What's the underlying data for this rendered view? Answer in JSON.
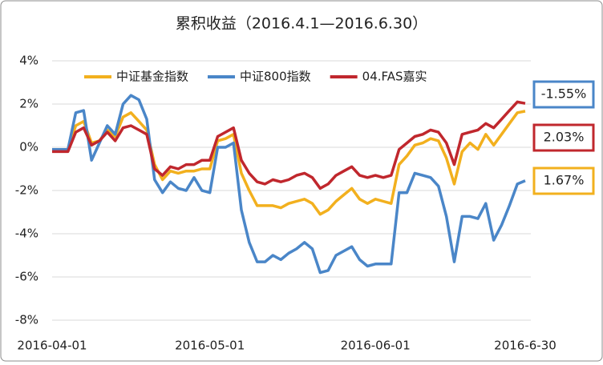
{
  "chart_data": {
    "type": "line",
    "title": "累积收益（2016.4.1—2016.6.30）",
    "categories": [
      "2016-04-01",
      null,
      null,
      null,
      null,
      null,
      null,
      null,
      null,
      null,
      null,
      null,
      null,
      null,
      null,
      null,
      null,
      null,
      null,
      null,
      "2016-05-01",
      null,
      null,
      null,
      null,
      null,
      null,
      null,
      null,
      null,
      null,
      null,
      null,
      null,
      null,
      null,
      null,
      null,
      null,
      null,
      null,
      "2016-06-01",
      null,
      null,
      null,
      null,
      null,
      null,
      null,
      null,
      null,
      null,
      null,
      null,
      null,
      null,
      null,
      null,
      null,
      null,
      "2016-6-30"
    ],
    "ylim": [
      -8,
      4
    ],
    "yticks": [
      {
        "value": -8,
        "label": "-8%"
      },
      {
        "value": -6,
        "label": "-6%"
      },
      {
        "value": -4,
        "label": "-4%"
      },
      {
        "value": -2,
        "label": "-2%"
      },
      {
        "value": 0,
        "label": "0%"
      },
      {
        "value": 2,
        "label": "2%"
      },
      {
        "value": 4,
        "label": "4%"
      }
    ],
    "grid": true,
    "legend": "top",
    "series": [
      {
        "name": "中证基金指数",
        "color": "#f2b01e",
        "values": [
          -0.1,
          -0.1,
          -0.1,
          1.0,
          1.2,
          0.2,
          0.3,
          0.8,
          0.5,
          1.4,
          1.6,
          1.2,
          0.8,
          -0.8,
          -1.5,
          -1.1,
          -1.2,
          -1.1,
          -1.1,
          -1.0,
          -1.0,
          0.3,
          0.4,
          0.6,
          -1.2,
          -2.0,
          -2.7,
          -2.7,
          -2.7,
          -2.8,
          -2.6,
          -2.5,
          -2.4,
          -2.6,
          -3.1,
          -2.9,
          -2.5,
          -2.2,
          -1.9,
          -2.4,
          -2.6,
          -2.4,
          -2.5,
          -2.6,
          -0.8,
          -0.4,
          0.1,
          0.2,
          0.4,
          0.3,
          -0.5,
          -1.7,
          -0.2,
          0.2,
          -0.1,
          0.6,
          0.1,
          0.6,
          1.1,
          1.6,
          1.67
        ],
        "value_labels": [
          null,
          null,
          null,
          null,
          null,
          null,
          null,
          null,
          null,
          null,
          null,
          null,
          null,
          null,
          null,
          null,
          null,
          null,
          null,
          null,
          null,
          null,
          null,
          null,
          null,
          null,
          null,
          null,
          null,
          null,
          null,
          null,
          null,
          null,
          null,
          null,
          null,
          null,
          null,
          null,
          null,
          null,
          null,
          null,
          null,
          null,
          null,
          null,
          null,
          null,
          null,
          null,
          null,
          null,
          null,
          null,
          null,
          null,
          null,
          null,
          "1.67%"
        ]
      },
      {
        "name": "中证800指数",
        "color": "#4a86c8",
        "values": [
          -0.1,
          -0.1,
          -0.1,
          1.6,
          1.7,
          -0.6,
          0.2,
          1.0,
          0.6,
          2.0,
          2.4,
          2.2,
          1.3,
          -1.5,
          -2.1,
          -1.6,
          -1.9,
          -2.0,
          -1.4,
          -2.0,
          -2.1,
          0.0,
          0.0,
          0.2,
          -2.9,
          -4.4,
          -5.3,
          -5.3,
          -5.0,
          -5.2,
          -4.9,
          -4.7,
          -4.4,
          -4.7,
          -5.8,
          -5.7,
          -5.0,
          -4.8,
          -4.6,
          -5.2,
          -5.5,
          -5.4,
          -5.4,
          -5.4,
          -2.1,
          -2.1,
          -1.2,
          -1.3,
          -1.4,
          -1.8,
          -3.2,
          -5.3,
          -3.2,
          -3.2,
          -3.3,
          -2.6,
          -4.3,
          -3.6,
          -2.7,
          -1.7,
          -1.55
        ],
        "value_labels": [
          null,
          null,
          null,
          null,
          null,
          null,
          null,
          null,
          null,
          null,
          null,
          null,
          null,
          null,
          null,
          null,
          null,
          null,
          null,
          null,
          null,
          null,
          null,
          null,
          null,
          null,
          null,
          null,
          null,
          null,
          null,
          null,
          null,
          null,
          null,
          null,
          null,
          null,
          null,
          null,
          null,
          null,
          null,
          null,
          null,
          null,
          null,
          null,
          null,
          null,
          null,
          null,
          null,
          null,
          null,
          null,
          null,
          null,
          null,
          null,
          "-1.55%"
        ]
      },
      {
        "name": "04.FAS嘉实",
        "color": "#c0272d",
        "values": [
          -0.2,
          -0.2,
          -0.2,
          0.7,
          0.9,
          0.1,
          0.3,
          0.7,
          0.3,
          0.9,
          1.0,
          0.8,
          0.6,
          -1.0,
          -1.3,
          -0.9,
          -1.0,
          -0.8,
          -0.8,
          -0.6,
          -0.6,
          0.5,
          0.7,
          0.9,
          -0.6,
          -1.2,
          -1.6,
          -1.7,
          -1.5,
          -1.6,
          -1.5,
          -1.3,
          -1.2,
          -1.4,
          -1.9,
          -1.7,
          -1.3,
          -1.1,
          -0.9,
          -1.3,
          -1.4,
          -1.3,
          -1.4,
          -1.3,
          -0.1,
          0.2,
          0.5,
          0.6,
          0.8,
          0.7,
          0.2,
          -0.8,
          0.6,
          0.7,
          0.8,
          1.1,
          0.9,
          1.3,
          1.7,
          2.1,
          2.03
        ],
        "value_labels": [
          null,
          null,
          null,
          null,
          null,
          null,
          null,
          null,
          null,
          null,
          null,
          null,
          null,
          null,
          null,
          null,
          null,
          null,
          null,
          null,
          null,
          null,
          null,
          null,
          null,
          null,
          null,
          null,
          null,
          null,
          null,
          null,
          null,
          null,
          null,
          null,
          null,
          null,
          null,
          null,
          null,
          null,
          null,
          null,
          null,
          null,
          null,
          null,
          null,
          null,
          null,
          null,
          null,
          null,
          null,
          null,
          null,
          null,
          null,
          null,
          "2.03%"
        ]
      }
    ]
  }
}
